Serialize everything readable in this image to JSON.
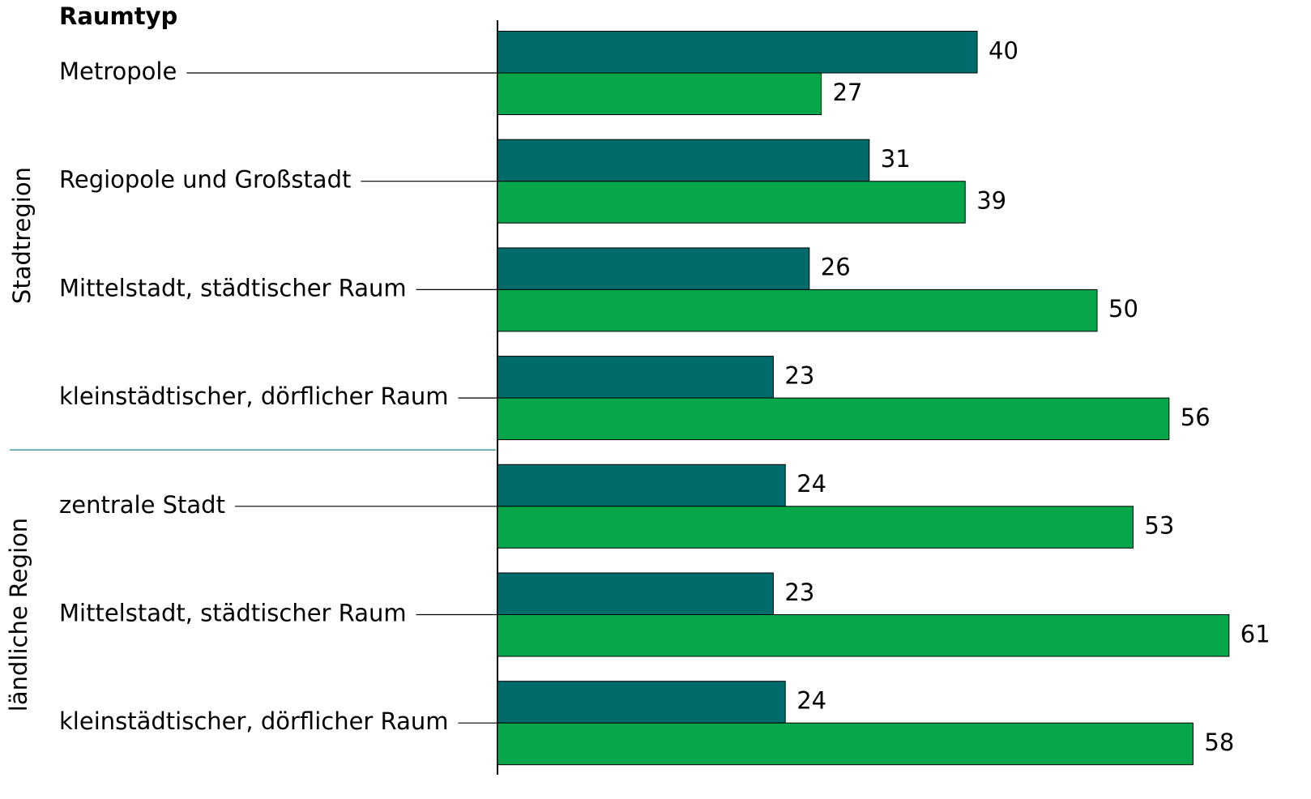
{
  "chart_data": {
    "type": "bar",
    "orientation": "horizontal",
    "header": "Raumtyp",
    "groups": [
      {
        "label": "Stadtregion",
        "categories": [
          "Metropole",
          "Regiopole und Großstadt",
          "Mittelstadt, städtischer Raum",
          "kleinstädtischer, dörflicher Raum"
        ]
      },
      {
        "label": "ländliche Region",
        "categories": [
          "zentrale Stadt",
          "Mittelstadt, städtischer Raum",
          "kleinstädtischer, dörflicher Raum"
        ]
      }
    ],
    "series": [
      {
        "color": "#006b6b",
        "values": [
          40,
          31,
          26,
          23,
          24,
          23,
          24
        ]
      },
      {
        "color": "#07a64a",
        "values": [
          27,
          39,
          50,
          56,
          53,
          61,
          58
        ]
      }
    ]
  }
}
